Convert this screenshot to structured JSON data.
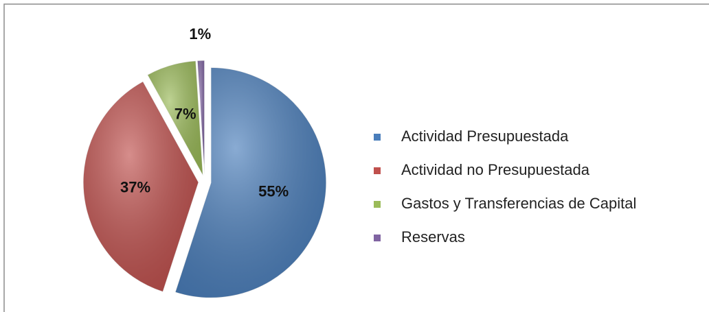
{
  "chart_data": {
    "type": "pie",
    "categories": [
      "Actividad Presupuestada",
      "Actividad no Presupuestada",
      "Gastos y Transferencias de Capital",
      "Reservas"
    ],
    "values": [
      55,
      37,
      7,
      1
    ],
    "value_labels": [
      "55%",
      "37%",
      "7%",
      "1%"
    ],
    "colors": [
      "#4a7ebb",
      "#c0504d",
      "#9bbb59",
      "#8064a2"
    ],
    "legend": "right"
  }
}
